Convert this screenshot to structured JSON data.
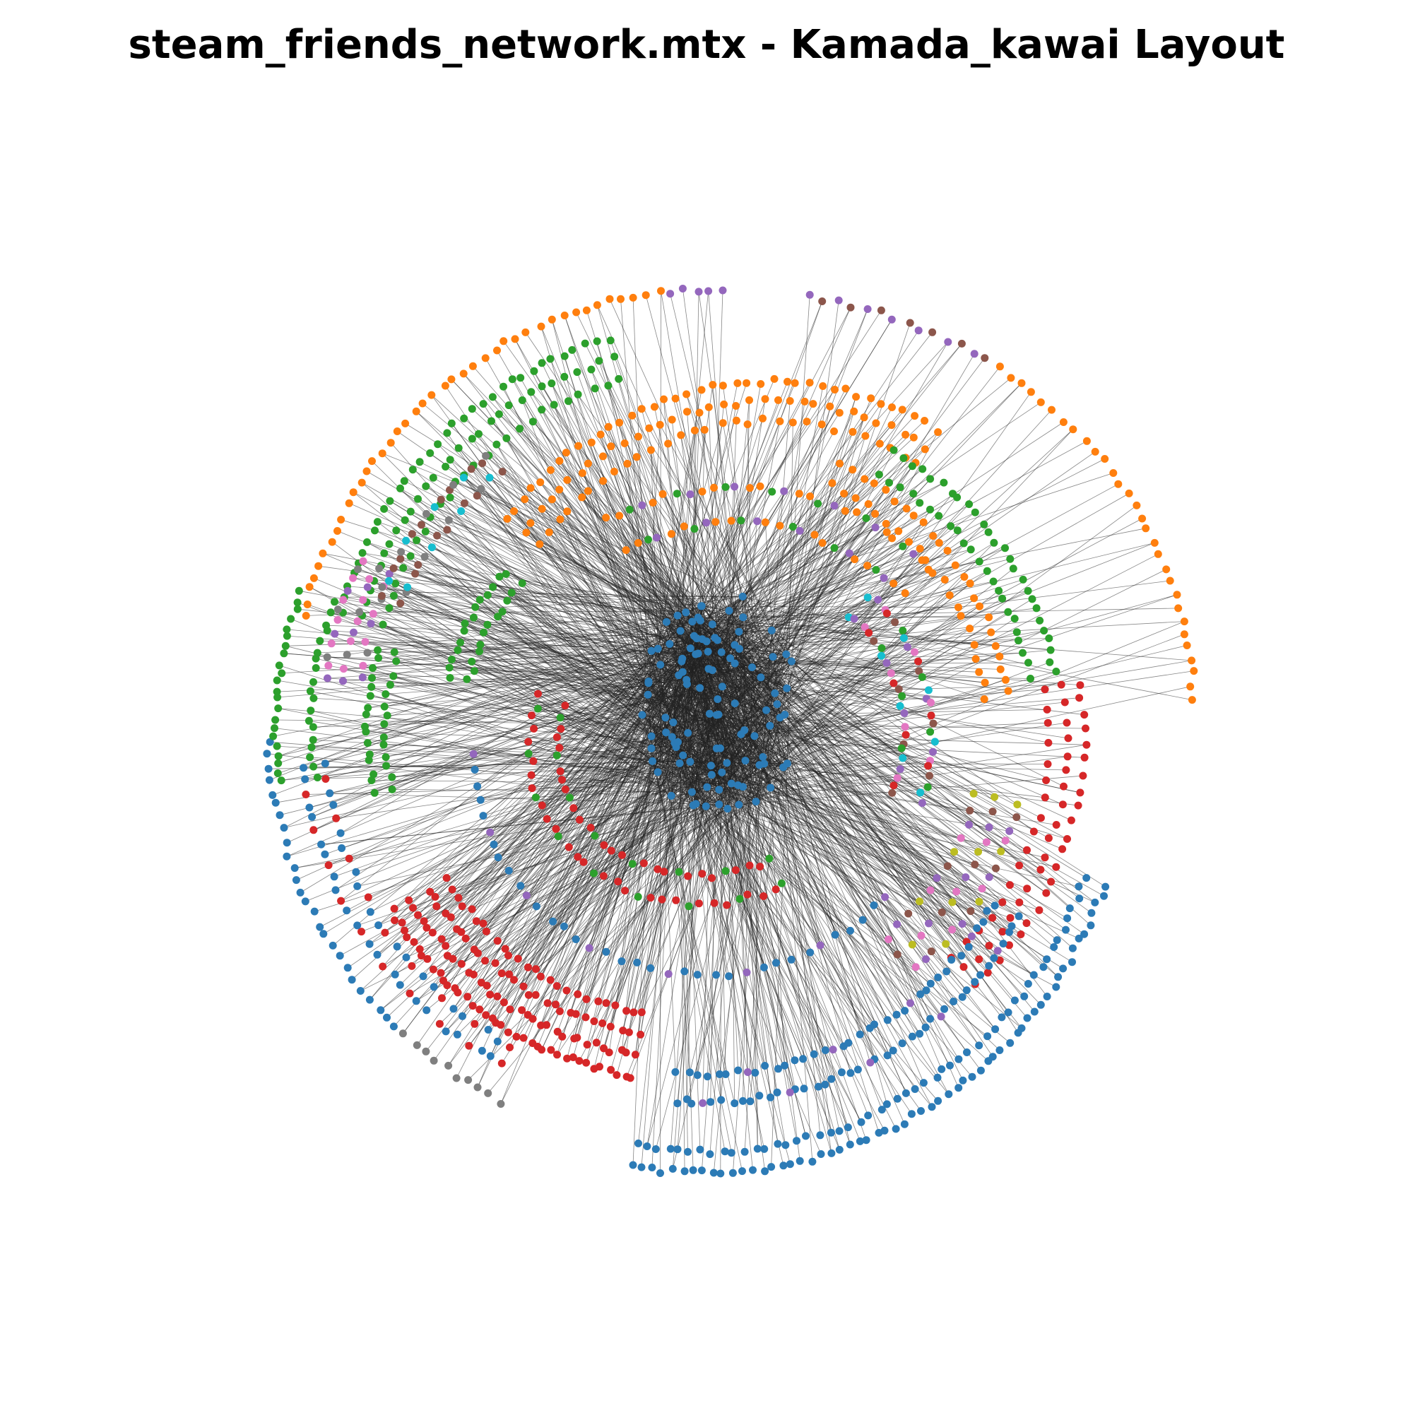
{
  "figure": {
    "title": "steam_friends_network.mtx - Kamada_kawai Layout"
  },
  "graph": {
    "layout": "kamada_kawai",
    "edge_color": "#222222",
    "node_colors": [
      "#2c7bb6",
      "#ff7f0e",
      "#2ca02c",
      "#d62728",
      "#9467bd",
      "#8c564b",
      "#e377c2",
      "#7f7f7f",
      "#bcbd22",
      "#17becf"
    ],
    "communities": [
      {
        "color": "#ff7f0e",
        "name": "orange"
      },
      {
        "color": "#2ca02c",
        "name": "green"
      },
      {
        "color": "#9467bd",
        "name": "purple"
      },
      {
        "color": "#8c564b",
        "name": "brown"
      },
      {
        "color": "#e377c2",
        "name": "pink"
      },
      {
        "color": "#d62728",
        "name": "red"
      },
      {
        "color": "#2c7bb6",
        "name": "blue"
      },
      {
        "color": "#7f7f7f",
        "name": "gray"
      },
      {
        "color": "#bcbd22",
        "name": "olive"
      },
      {
        "color": "#17becf",
        "name": "cyan"
      }
    ]
  }
}
